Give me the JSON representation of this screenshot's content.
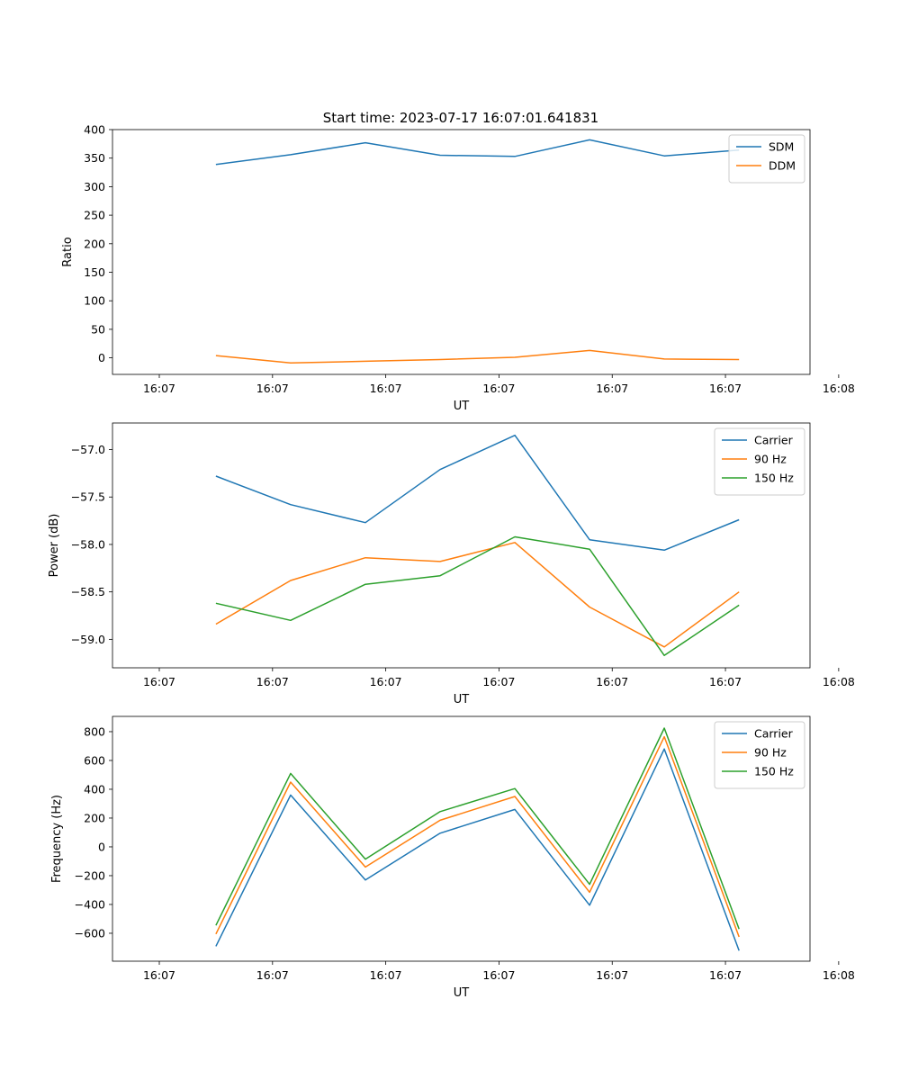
{
  "colors": {
    "blue": "#1f77b4",
    "orange": "#ff7f0e",
    "green": "#2ca02c"
  },
  "chart_data": [
    {
      "type": "line",
      "title": "Start time: 2023-07-17 16:07:01.641831",
      "xlabel": "UT",
      "ylabel": "Ratio",
      "xlim": [
        -0.62,
        8.62
      ],
      "x": [
        0.75,
        1.74,
        2.73,
        3.72,
        4.71,
        5.7,
        6.69,
        7.68
      ],
      "xticks": [
        0,
        1.5,
        3,
        4.5,
        6,
        7.5,
        9
      ],
      "xticklabels": [
        "16:07",
        "16:07",
        "16:07",
        "16:07",
        "16:07",
        "16:07",
        "16:08"
      ],
      "ylim": [
        -29,
        400
      ],
      "yticks": [
        0,
        50,
        100,
        150,
        200,
        250,
        300,
        350,
        400
      ],
      "yticklabels": [
        "0",
        "50",
        "100",
        "150",
        "200",
        "250",
        "300",
        "350",
        "400"
      ],
      "legend_position": "top-right",
      "series": [
        {
          "name": "SDM",
          "color": "#1f77b4",
          "values": [
            339,
            356,
            377,
            355,
            353,
            382,
            354,
            364
          ]
        },
        {
          "name": "DDM",
          "color": "#ff7f0e",
          "values": [
            4,
            -9,
            -6,
            -3,
            1,
            13,
            -2,
            -3
          ]
        }
      ]
    },
    {
      "type": "line",
      "title": "",
      "xlabel": "UT",
      "ylabel": "Power (dB)",
      "xlim": [
        -0.62,
        8.62
      ],
      "x": [
        0.75,
        1.74,
        2.73,
        3.72,
        4.71,
        5.7,
        6.69,
        7.68
      ],
      "xticks": [
        0,
        1.5,
        3,
        4.5,
        6,
        7.5,
        9
      ],
      "xticklabels": [
        "16:07",
        "16:07",
        "16:07",
        "16:07",
        "16:07",
        "16:07",
        "16:08"
      ],
      "ylim": [
        -59.3,
        -56.72
      ],
      "yticks": [
        -59.0,
        -58.5,
        -58.0,
        -57.5,
        -57.0
      ],
      "yticklabels": [
        "−59.0",
        "−58.5",
        "−58.0",
        "−57.5",
        "−57.0"
      ],
      "legend_position": "top-right",
      "series": [
        {
          "name": "Carrier",
          "color": "#1f77b4",
          "values": [
            -57.28,
            -57.58,
            -57.77,
            -57.21,
            -56.85,
            -57.95,
            -58.06,
            -57.74
          ]
        },
        {
          "name": "90 Hz",
          "color": "#ff7f0e",
          "values": [
            -58.84,
            -58.38,
            -58.14,
            -58.18,
            -57.98,
            -58.66,
            -59.08,
            -58.5
          ]
        },
        {
          "name": "150 Hz",
          "color": "#2ca02c",
          "values": [
            -58.62,
            -58.8,
            -58.42,
            -58.33,
            -57.92,
            -58.05,
            -59.17,
            -58.64
          ]
        }
      ]
    },
    {
      "type": "line",
      "title": "",
      "xlabel": "UT",
      "ylabel": "Frequency (Hz)",
      "xlim": [
        -0.62,
        8.62
      ],
      "x": [
        0.75,
        1.74,
        2.73,
        3.72,
        4.71,
        5.7,
        6.69,
        7.68
      ],
      "xticks": [
        0,
        1.5,
        3,
        4.5,
        6,
        7.5,
        9
      ],
      "xticklabels": [
        "16:07",
        "16:07",
        "16:07",
        "16:07",
        "16:07",
        "16:07",
        "16:08"
      ],
      "ylim": [
        -794,
        906
      ],
      "yticks": [
        -600,
        -400,
        -200,
        0,
        200,
        400,
        600,
        800
      ],
      "yticklabels": [
        "−600",
        "−400",
        "−200",
        "0",
        "200",
        "400",
        "600",
        "800"
      ],
      "legend_position": "top-right",
      "series": [
        {
          "name": "Carrier",
          "color": "#1f77b4",
          "values": [
            -690,
            360,
            -230,
            95,
            260,
            -405,
            680,
            -720
          ]
        },
        {
          "name": "90 Hz",
          "color": "#ff7f0e",
          "values": [
            -605,
            450,
            -140,
            185,
            350,
            -315,
            765,
            -625
          ]
        },
        {
          "name": "150 Hz",
          "color": "#2ca02c",
          "values": [
            -545,
            510,
            -85,
            245,
            405,
            -260,
            825,
            -570
          ]
        }
      ]
    }
  ]
}
